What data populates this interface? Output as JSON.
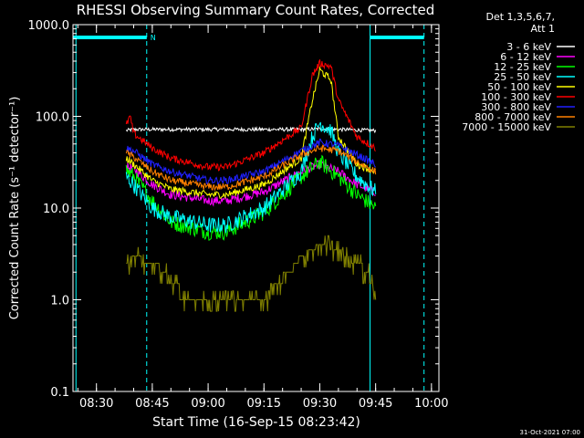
{
  "chart_data": {
    "type": "line",
    "title": "RHESSI Observing Summary Count Rates, Corrected",
    "xlabel": "Start Time (16-Sep-15 08:23:42)",
    "ylabel": "Corrected Count Rate (s⁻¹ detector⁻¹)",
    "y_scale": "log",
    "ylim": [
      0.1,
      1000
    ],
    "xlim": [
      "08:23:42",
      "10:02:00"
    ],
    "x_ticks": [
      "08:30",
      "08:45",
      "09:00",
      "09:15",
      "09:30",
      "09:45",
      "10:00"
    ],
    "y_ticks": [
      "0.1",
      "1.0",
      "10.0",
      "100.0",
      "1000.0"
    ],
    "legend": {
      "position": "top-right",
      "header_lines": [
        "Det 1,3,5,6,7,",
        "Att 1"
      ]
    },
    "series": [
      {
        "name": "3 - 6 keV",
        "color": "#ffffff",
        "x": [
          "08:38",
          "08:40",
          "08:45",
          "09:00",
          "09:15",
          "09:25",
          "09:30",
          "09:35",
          "09:40",
          "09:45"
        ],
        "y": [
          70,
          72,
          72,
          72,
          72,
          72,
          73,
          72,
          71,
          70
        ]
      },
      {
        "name": "6 - 12 keV",
        "color": "#ff00ff",
        "x": [
          "08:38",
          "08:40",
          "08:45",
          "08:50",
          "09:00",
          "09:05",
          "09:15",
          "09:25",
          "09:30",
          "09:35",
          "09:40",
          "09:45"
        ],
        "y": [
          28,
          27,
          18,
          14,
          12,
          12,
          15,
          25,
          30,
          25,
          18,
          15
        ]
      },
      {
        "name": "12 - 25 keV",
        "color": "#00ff00",
        "x": [
          "08:38",
          "08:40",
          "08:45",
          "08:50",
          "09:00",
          "09:05",
          "09:15",
          "09:25",
          "09:30",
          "09:35",
          "09:40",
          "09:45"
        ],
        "y": [
          26,
          22,
          12,
          7,
          5.5,
          5.5,
          9,
          22,
          32,
          22,
          14,
          10
        ]
      },
      {
        "name": "25 - 50 keV",
        "color": "#00ffff",
        "x": [
          "08:38",
          "08:40",
          "08:45",
          "08:50",
          "09:00",
          "09:05",
          "09:15",
          "09:25",
          "09:28",
          "09:30",
          "09:33",
          "09:35",
          "09:40",
          "09:45"
        ],
        "y": [
          22,
          18,
          10,
          8,
          6.5,
          6.5,
          10,
          25,
          60,
          85,
          70,
          40,
          22,
          15
        ]
      },
      {
        "name": "50 - 100 keV",
        "color": "#ffff00",
        "x": [
          "08:38",
          "08:40",
          "08:45",
          "08:50",
          "09:00",
          "09:05",
          "09:15",
          "09:25",
          "09:28",
          "09:30",
          "09:33",
          "09:35",
          "09:40",
          "09:45"
        ],
        "y": [
          35,
          30,
          20,
          16,
          14,
          14,
          18,
          35,
          150,
          320,
          250,
          60,
          30,
          25
        ]
      },
      {
        "name": "100 - 300 keV",
        "color": "#ff0000",
        "x": [
          "08:38",
          "08:39",
          "08:40",
          "08:45",
          "08:50",
          "09:00",
          "09:05",
          "09:15",
          "09:25",
          "09:28",
          "09:30",
          "09:33",
          "09:35",
          "09:40",
          "09:45"
        ],
        "y": [
          80,
          100,
          65,
          45,
          35,
          28,
          28,
          40,
          75,
          280,
          380,
          350,
          150,
          60,
          45
        ]
      },
      {
        "name": "300 - 800 keV",
        "color": "#2020ff",
        "x": [
          "08:38",
          "08:40",
          "08:45",
          "08:50",
          "09:00",
          "09:05",
          "09:15",
          "09:25",
          "09:30",
          "09:35",
          "09:40",
          "09:45"
        ],
        "y": [
          45,
          42,
          30,
          25,
          20,
          20,
          25,
          42,
          52,
          48,
          38,
          30
        ]
      },
      {
        "name": "800 - 7000 keV",
        "color": "#ff8000",
        "x": [
          "08:38",
          "08:40",
          "08:45",
          "08:50",
          "09:00",
          "09:05",
          "09:15",
          "09:25",
          "09:30",
          "09:35",
          "09:40",
          "09:45"
        ],
        "y": [
          40,
          36,
          25,
          20,
          17,
          17,
          22,
          38,
          45,
          42,
          32,
          25
        ]
      },
      {
        "name": "7000 - 15000 keV",
        "color": "#808000",
        "x": [
          "08:38",
          "08:40",
          "08:45",
          "08:48",
          "08:50",
          "08:55",
          "09:10",
          "09:15",
          "09:18",
          "09:22",
          "09:25",
          "09:30",
          "09:35",
          "09:40",
          "09:43",
          "09:45"
        ],
        "y": [
          2.5,
          3.0,
          2.5,
          2.0,
          1.5,
          1.0,
          1.0,
          1.0,
          1.5,
          2.0,
          3.0,
          4.0,
          3.5,
          2.5,
          2.0,
          1.0
        ]
      }
    ],
    "attenuator_bars": [
      {
        "x_start": "08:23:42",
        "x_end": "08:43:30",
        "label": "N"
      },
      {
        "x_start": "09:43:30",
        "x_end": "09:58:00",
        "label": ""
      }
    ],
    "vertical_markers": [
      {
        "x": "08:24:30",
        "style": "solid"
      },
      {
        "x": "08:43:30",
        "style": "dashed"
      },
      {
        "x": "09:43:30",
        "style": "solid"
      },
      {
        "x": "09:58:00",
        "style": "dashed"
      }
    ],
    "footer_timestamp": "31-Oct-2021 07:00"
  }
}
